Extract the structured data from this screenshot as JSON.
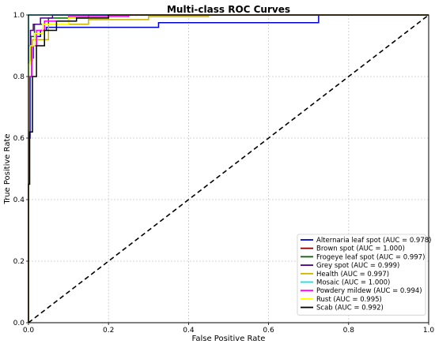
{
  "chart_data": {
    "type": "line",
    "title": "Multi-class ROC Curves",
    "xlabel": "False Positive Rate",
    "ylabel": "True Positive Rate",
    "xlim": [
      0.0,
      1.0
    ],
    "ylim": [
      0.0,
      1.0
    ],
    "xticks": [
      "0.0",
      "0.2",
      "0.4",
      "0.6",
      "0.8",
      "1.0"
    ],
    "yticks": [
      "0.0",
      "0.2",
      "0.4",
      "0.6",
      "0.8",
      "1.0"
    ],
    "grid": true,
    "legend_position": "lower-right",
    "series": [
      {
        "name": "Alternaria leaf spot (AUC = 0.978)",
        "color": "#0000cc",
        "x": [
          0,
          0,
          0.004,
          0.004,
          0.008,
          0.008,
          0.012,
          0.012,
          0.02,
          0.02,
          0.03,
          0.03,
          0.045,
          0.045,
          0.325,
          0.325,
          0.725,
          0.725,
          1.0
        ],
        "y": [
          0,
          0.6,
          0.6,
          0.8,
          0.8,
          0.86,
          0.86,
          0.9,
          0.9,
          0.93,
          0.93,
          0.95,
          0.95,
          0.96,
          0.96,
          0.975,
          0.975,
          1.0,
          1.0
        ]
      },
      {
        "name": "Brown spot (AUC = 1.000)",
        "color": "#8b0000",
        "x": [
          0,
          0,
          1.0
        ],
        "y": [
          0,
          1.0,
          1.0
        ]
      },
      {
        "name": "Frogeye leaf spot (AUC = 0.997)",
        "color": "#006400",
        "x": [
          0,
          0,
          0.006,
          0.006,
          0.015,
          0.015,
          0.05,
          0.05,
          0.15,
          0.15,
          1.0
        ],
        "y": [
          0,
          0.85,
          0.85,
          0.93,
          0.93,
          0.97,
          0.97,
          0.99,
          0.99,
          1.0,
          1.0
        ]
      },
      {
        "name": "Grey spot (AUC = 0.999)",
        "color": "#4b0082",
        "x": [
          0,
          0,
          0.005,
          0.005,
          0.012,
          0.012,
          0.03,
          0.03,
          0.06,
          0.06,
          1.0
        ],
        "y": [
          0,
          0.9,
          0.9,
          0.95,
          0.95,
          0.97,
          0.97,
          0.99,
          0.99,
          1.0,
          1.0
        ]
      },
      {
        "name": "Health (AUC = 0.997)",
        "color": "#c8b400",
        "x": [
          0,
          0,
          0.01,
          0.01,
          0.05,
          0.05,
          0.15,
          0.15,
          0.3,
          0.3,
          0.45,
          0.45,
          1.0
        ],
        "y": [
          0,
          0.85,
          0.85,
          0.92,
          0.92,
          0.97,
          0.97,
          0.985,
          0.985,
          0.995,
          0.995,
          1.0,
          1.0
        ]
      },
      {
        "name": "Mosaic (AUC = 1.000)",
        "color": "#00e5ee",
        "x": [
          0,
          0,
          1.0
        ],
        "y": [
          0,
          1.0,
          1.0
        ]
      },
      {
        "name": "Powdery mildew (AUC = 0.994)",
        "color": "#ff00ff",
        "x": [
          0,
          0,
          0.008,
          0.008,
          0.02,
          0.02,
          0.04,
          0.04,
          0.1,
          0.1,
          0.25,
          0.25,
          1.0
        ],
        "y": [
          0,
          0.8,
          0.8,
          0.9,
          0.9,
          0.95,
          0.95,
          0.98,
          0.98,
          0.995,
          0.995,
          1.0,
          1.0
        ]
      },
      {
        "name": "Rust (AUC = 0.995)",
        "color": "#ffff00",
        "x": [
          0,
          0,
          0.004,
          0.004,
          0.015,
          0.015,
          0.035,
          0.035,
          0.1,
          0.1,
          0.2,
          0.2,
          1.0
        ],
        "y": [
          0,
          0.84,
          0.84,
          0.9,
          0.9,
          0.94,
          0.94,
          0.97,
          0.97,
          0.99,
          0.99,
          1.0,
          1.0
        ]
      },
      {
        "name": "Scab (AUC = 0.992)",
        "color": "#000000",
        "x": [
          0,
          0,
          0.003,
          0.003,
          0.01,
          0.01,
          0.02,
          0.02,
          0.04,
          0.04,
          0.07,
          0.07,
          0.12,
          0.12,
          0.2,
          0.2,
          1.0
        ],
        "y": [
          0,
          0.45,
          0.45,
          0.62,
          0.62,
          0.8,
          0.8,
          0.9,
          0.9,
          0.95,
          0.95,
          0.98,
          0.98,
          0.99,
          0.99,
          1.0,
          1.0
        ]
      }
    ],
    "reference_line": {
      "x": [
        0,
        1
      ],
      "y": [
        0,
        1
      ],
      "style": "dashed",
      "color": "#000000"
    }
  }
}
